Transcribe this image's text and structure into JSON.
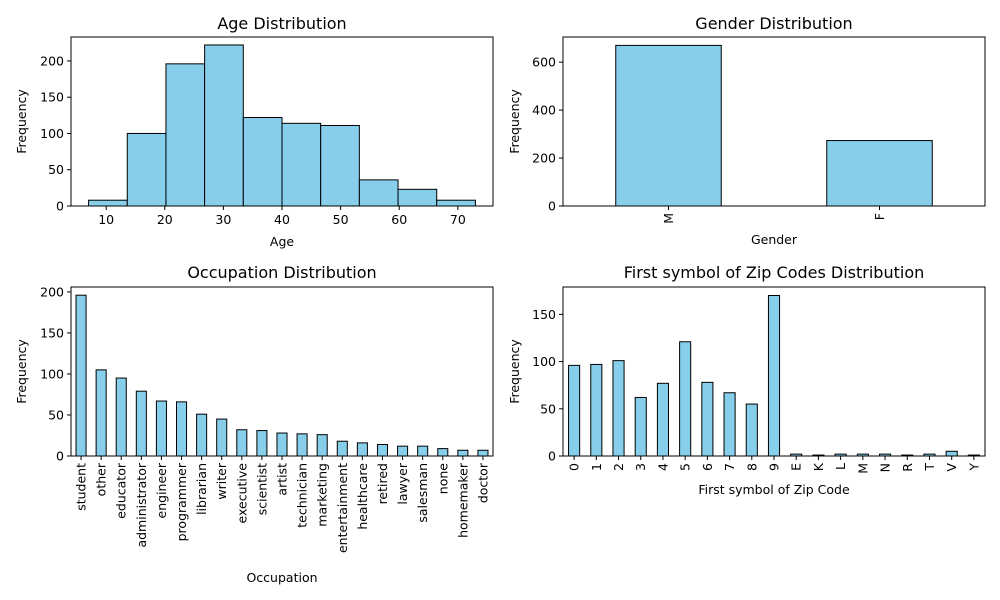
{
  "chart_data": [
    {
      "type": "bar",
      "subtype": "histogram",
      "title": "Age Distribution",
      "xlabel": "Age",
      "ylabel": "Frequency",
      "bins": [
        [
          7,
          13.6
        ],
        [
          13.6,
          20.2
        ],
        [
          20.2,
          26.8
        ],
        [
          26.8,
          33.4
        ],
        [
          33.4,
          40
        ],
        [
          40,
          46.6
        ],
        [
          46.6,
          53.2
        ],
        [
          53.2,
          59.8
        ],
        [
          59.8,
          66.4
        ],
        [
          66.4,
          73
        ]
      ],
      "values": [
        8,
        100,
        196,
        222,
        122,
        114,
        111,
        36,
        23,
        8
      ],
      "xlim": [
        4,
        76
      ],
      "ylim": [
        0,
        233
      ],
      "xticks": [
        10,
        20,
        30,
        40,
        50,
        60,
        70
      ],
      "yticks": [
        0,
        50,
        100,
        150,
        200
      ],
      "grid": false
    },
    {
      "type": "bar",
      "title": "Gender Distribution",
      "xlabel": "Gender",
      "ylabel": "Frequency",
      "categories": [
        "M",
        "F"
      ],
      "values": [
        670,
        273
      ],
      "ylim": [
        0,
        705
      ],
      "yticks": [
        0,
        200,
        400,
        600
      ],
      "grid": false
    },
    {
      "type": "bar",
      "title": "Occupation Distribution",
      "xlabel": "Occupation",
      "ylabel": "Frequency",
      "categories": [
        "student",
        "other",
        "educator",
        "administrator",
        "engineer",
        "programmer",
        "librarian",
        "writer",
        "executive",
        "scientist",
        "artist",
        "technician",
        "marketing",
        "entertainment",
        "healthcare",
        "retired",
        "lawyer",
        "salesman",
        "none",
        "homemaker",
        "doctor"
      ],
      "values": [
        196,
        105,
        95,
        79,
        67,
        66,
        51,
        45,
        32,
        31,
        28,
        27,
        26,
        18,
        16,
        14,
        12,
        12,
        9,
        7,
        7
      ],
      "ylim": [
        0,
        206
      ],
      "yticks": [
        0,
        50,
        100,
        150,
        200
      ],
      "grid": false
    },
    {
      "type": "bar",
      "title": "First symbol of Zip Codes Distribution",
      "xlabel": "First symbol of Zip Code",
      "ylabel": "Frequency",
      "categories": [
        "0",
        "1",
        "2",
        "3",
        "4",
        "5",
        "6",
        "7",
        "8",
        "9",
        "E",
        "K",
        "L",
        "M",
        "N",
        "R",
        "T",
        "V",
        "Y"
      ],
      "values": [
        96,
        97,
        101,
        62,
        77,
        121,
        78,
        67,
        55,
        170,
        2,
        1,
        2,
        2,
        2,
        1,
        2,
        5,
        1
      ],
      "ylim": [
        0,
        179
      ],
      "yticks": [
        0,
        50,
        100,
        150
      ],
      "grid": false
    }
  ],
  "style": {
    "bar_fill": "#87ceeb",
    "bar_edge": "#000000"
  }
}
